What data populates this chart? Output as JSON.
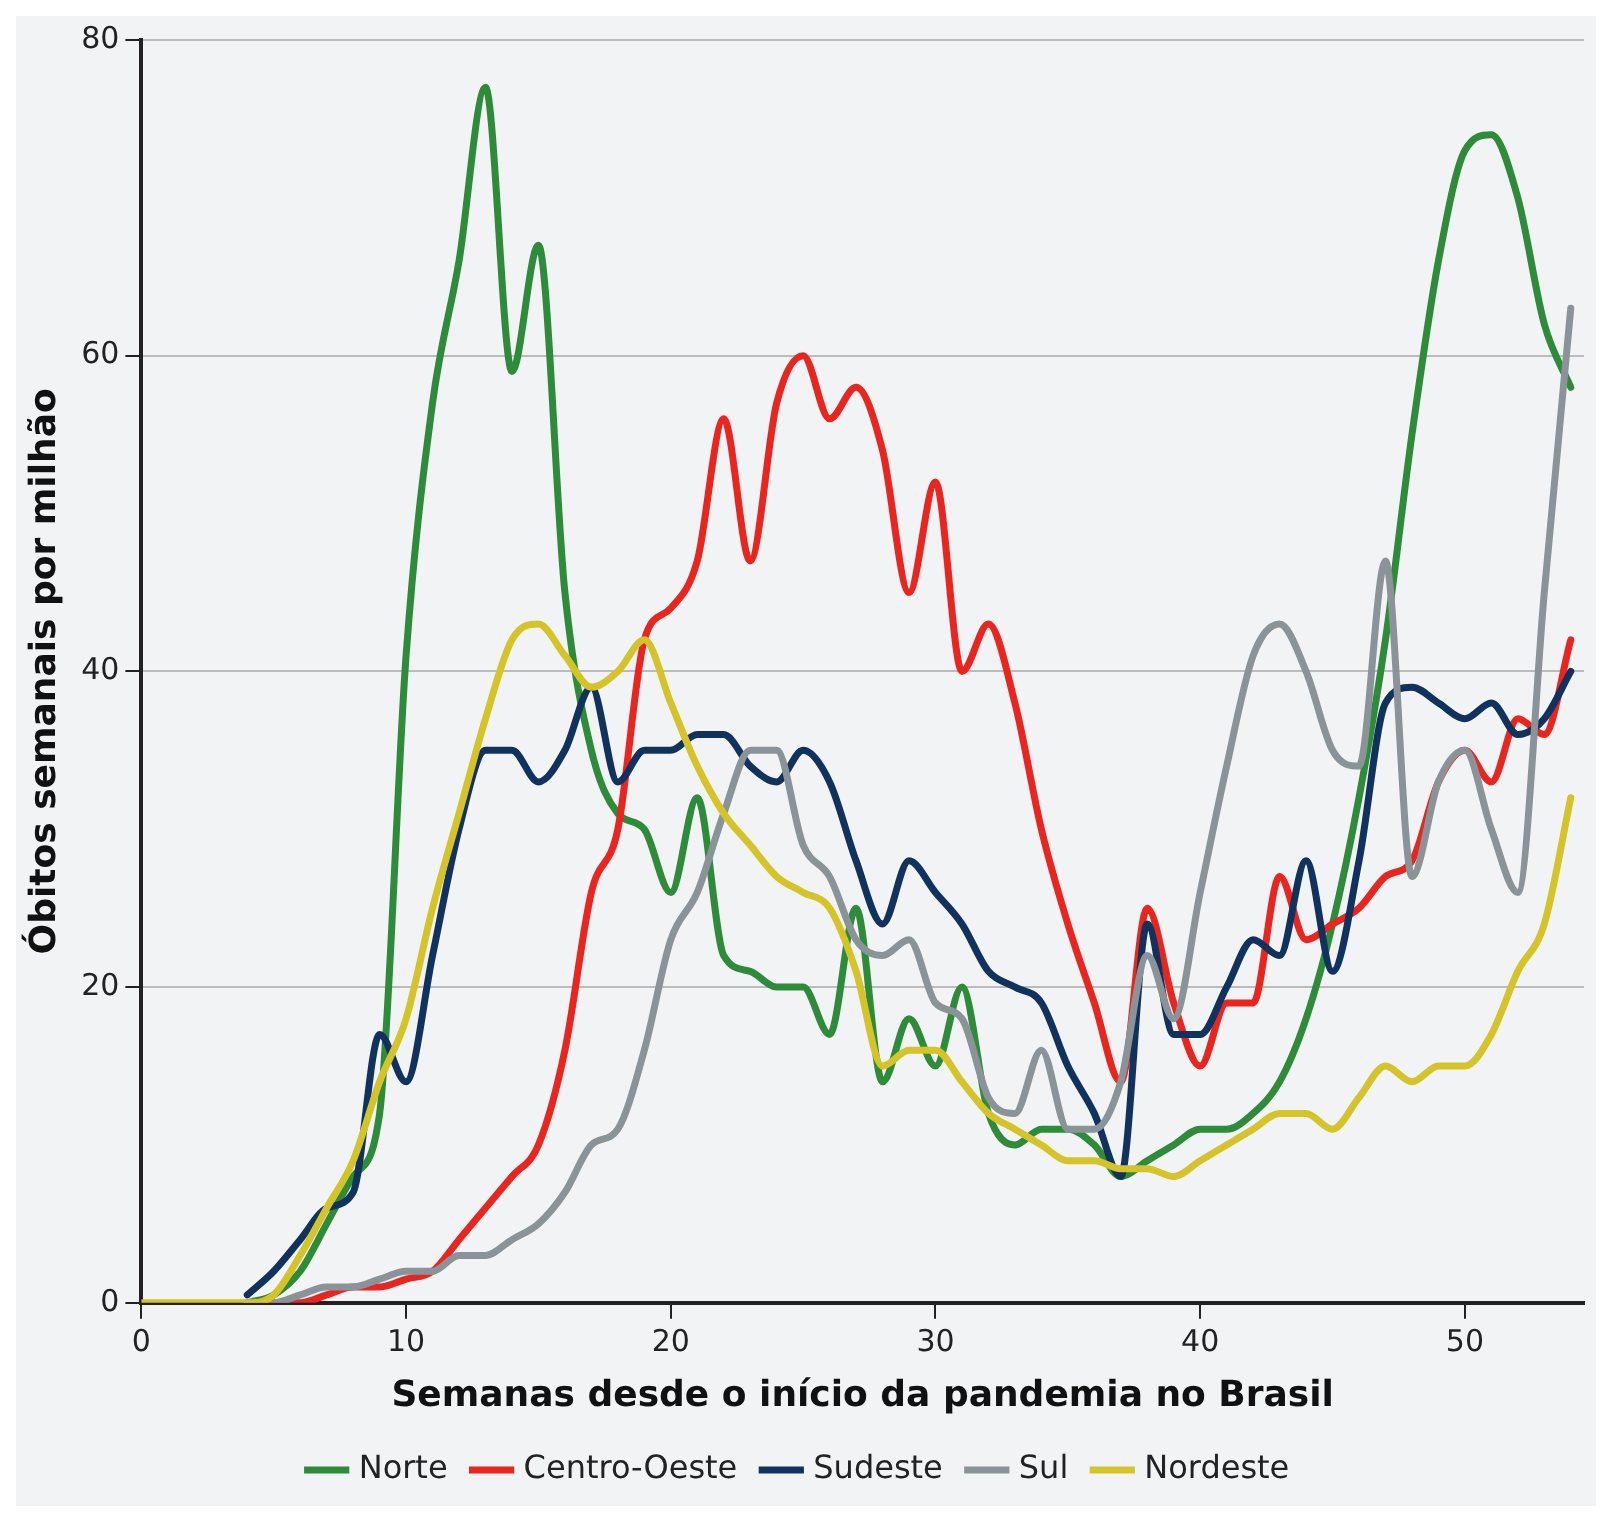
{
  "chart_data": {
    "type": "line",
    "xlabel": "Semanas desde o início da pandemia no Brasil",
    "ylabel": "Óbitos semanais por milhão",
    "x": [
      0,
      1,
      2,
      3,
      4,
      5,
      6,
      7,
      8,
      9,
      10,
      11,
      12,
      13,
      14,
      15,
      16,
      17,
      18,
      19,
      20,
      21,
      22,
      23,
      24,
      25,
      26,
      27,
      28,
      29,
      30,
      31,
      32,
      33,
      34,
      35,
      36,
      37,
      38,
      39,
      40,
      41,
      42,
      43,
      44,
      45,
      46,
      47,
      48,
      49,
      50,
      51,
      52,
      53,
      54
    ],
    "xlim": [
      0,
      54.5
    ],
    "xticks": [
      0,
      10,
      20,
      30,
      40,
      50
    ],
    "ylim": [
      0,
      80
    ],
    "yticks": [
      0,
      20,
      40,
      60,
      80
    ],
    "grid": "y",
    "legend": "bottom",
    "marker": "none",
    "line_style": "solid",
    "series": [
      {
        "name": "Norte",
        "color": "#2e8b3a",
        "values": [
          null,
          null,
          null,
          null,
          0,
          0.5,
          2,
          5,
          8,
          12,
          41,
          57,
          66,
          77,
          59,
          67,
          45,
          35,
          31,
          30,
          26,
          32,
          22,
          21,
          20,
          20,
          17,
          25,
          14,
          18,
          15,
          20,
          12,
          10,
          11,
          11,
          10,
          8,
          9,
          10,
          11,
          11,
          12,
          14,
          18,
          24,
          32,
          42,
          55,
          66,
          73,
          74,
          70,
          62,
          58
        ]
      },
      {
        "name": "Centro-Oeste",
        "color": "#e8251f",
        "values": [
          null,
          null,
          null,
          null,
          0,
          0,
          0,
          0.5,
          1,
          1,
          1.5,
          2,
          4,
          6,
          8,
          10,
          16,
          26,
          30,
          42,
          44,
          47,
          56,
          47,
          57,
          60,
          56,
          58,
          54,
          45,
          52,
          40,
          43,
          38,
          30,
          24,
          19,
          14,
          25,
          19,
          15,
          19,
          19,
          27,
          23,
          24,
          25,
          27,
          28,
          33,
          35,
          33,
          37,
          36,
          42
        ]
      },
      {
        "name": "Sudeste",
        "color": "#12325e",
        "values": [
          null,
          null,
          null,
          null,
          0.5,
          2,
          4,
          6,
          7,
          17,
          14,
          22,
          30,
          35,
          35,
          33,
          35,
          39,
          33,
          35,
          35,
          36,
          36,
          34,
          33,
          35,
          33,
          28,
          24,
          28,
          26,
          24,
          21,
          20,
          19,
          15,
          12,
          8,
          24,
          17,
          17,
          20,
          23,
          22,
          28,
          21,
          28,
          38,
          39,
          38,
          37,
          38,
          36,
          37,
          40
        ]
      },
      {
        "name": "Sul",
        "color": "#8a9498",
        "values": [
          null,
          null,
          null,
          null,
          0,
          0,
          0.5,
          1,
          1,
          1.5,
          2,
          2,
          3,
          3,
          4,
          5,
          7,
          10,
          11,
          16,
          23,
          26,
          31,
          35,
          35,
          29,
          27,
          23,
          22,
          23,
          19,
          18,
          13,
          12,
          16,
          11,
          11,
          14,
          22,
          18,
          26,
          34,
          41,
          43,
          40,
          35,
          34,
          47,
          27,
          33,
          35,
          30,
          26,
          45,
          63
        ]
      },
      {
        "name": "Nordeste",
        "color": "#d4c42a",
        "values": [
          0,
          0,
          0,
          0,
          0,
          0.5,
          3,
          6,
          9,
          14,
          18,
          25,
          31,
          37,
          42,
          43,
          41,
          39,
          40,
          42,
          38,
          34,
          31,
          29,
          27,
          26,
          25,
          21,
          15,
          16,
          16,
          14,
          12,
          11,
          10,
          9,
          9,
          8.5,
          8.5,
          8,
          9,
          10,
          11,
          12,
          12,
          11,
          13,
          15,
          14,
          15,
          15,
          17,
          21,
          24,
          32
        ]
      }
    ]
  }
}
